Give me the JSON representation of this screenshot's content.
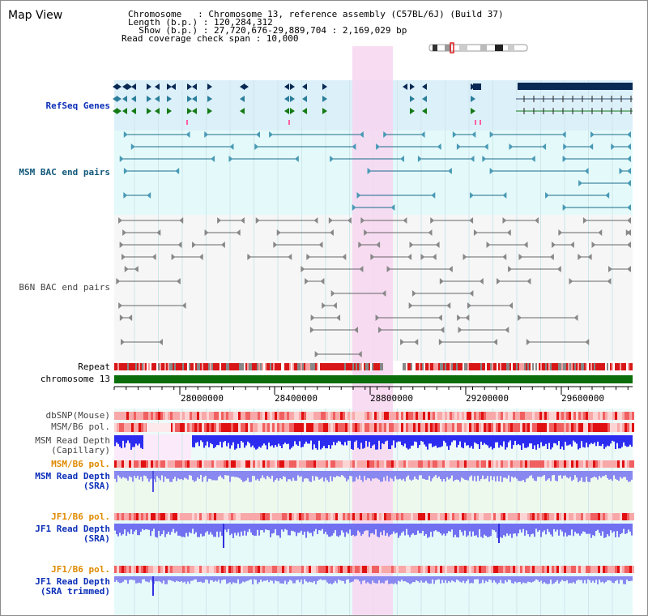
{
  "window": {
    "title": "Map View"
  },
  "info": {
    "line1": "Chromosome   : Chromosome 13, reference assembly (C57BL/6J) (Build 37)",
    "line2": "Length (b.p.) : 120,284,312",
    "line3": "  Show (b.p.) : 27,720,676-29,889,704 : 2,169,029 bp",
    "line4": "Read coverage check span : 10,000"
  },
  "tracks": {
    "refseq": "RefSeq Genes",
    "msm_bac": "MSM BAC end pairs",
    "b6n_bac": "B6N BAC end pairs",
    "repeat": "Repeat",
    "chromosome": "chromosome 13",
    "dbsnp": "dbSNP(Mouse)",
    "msm_b6_pol": "MSM/B6 pol.",
    "msm_depth_cap_1": "MSM Read Depth",
    "msm_depth_cap_2": "(Capillary)",
    "msm_b6_pol2": "MSM/B6 pol.",
    "msm_depth_sra_1": "MSM Read Depth",
    "msm_depth_sra_2": "(SRA)",
    "jf1_b6_pol": "JF1/B6 pol.",
    "jf1_depth_sra_1": "JF1 Read Depth",
    "jf1_depth_sra_2": "(SRA)",
    "jf1_b6_pol2": "JF1/B6 pol.",
    "jf1_depth_trim_1": "JF1 Read Depth",
    "jf1_depth_trim_2": "(SRA trimmed)"
  },
  "axis": {
    "ticks": [
      "28000000",
      "28400000",
      "28800000",
      "29200000",
      "29600000"
    ]
  },
  "colors": {
    "highlight": "#f7d6f0",
    "refseq_bg": "#dcf0fa",
    "msm_bg": "#e4fafa",
    "chrom_bar": "#0b6e0b",
    "depth_blue": "#2c2cf0",
    "depth_light": "#8888f0"
  }
}
